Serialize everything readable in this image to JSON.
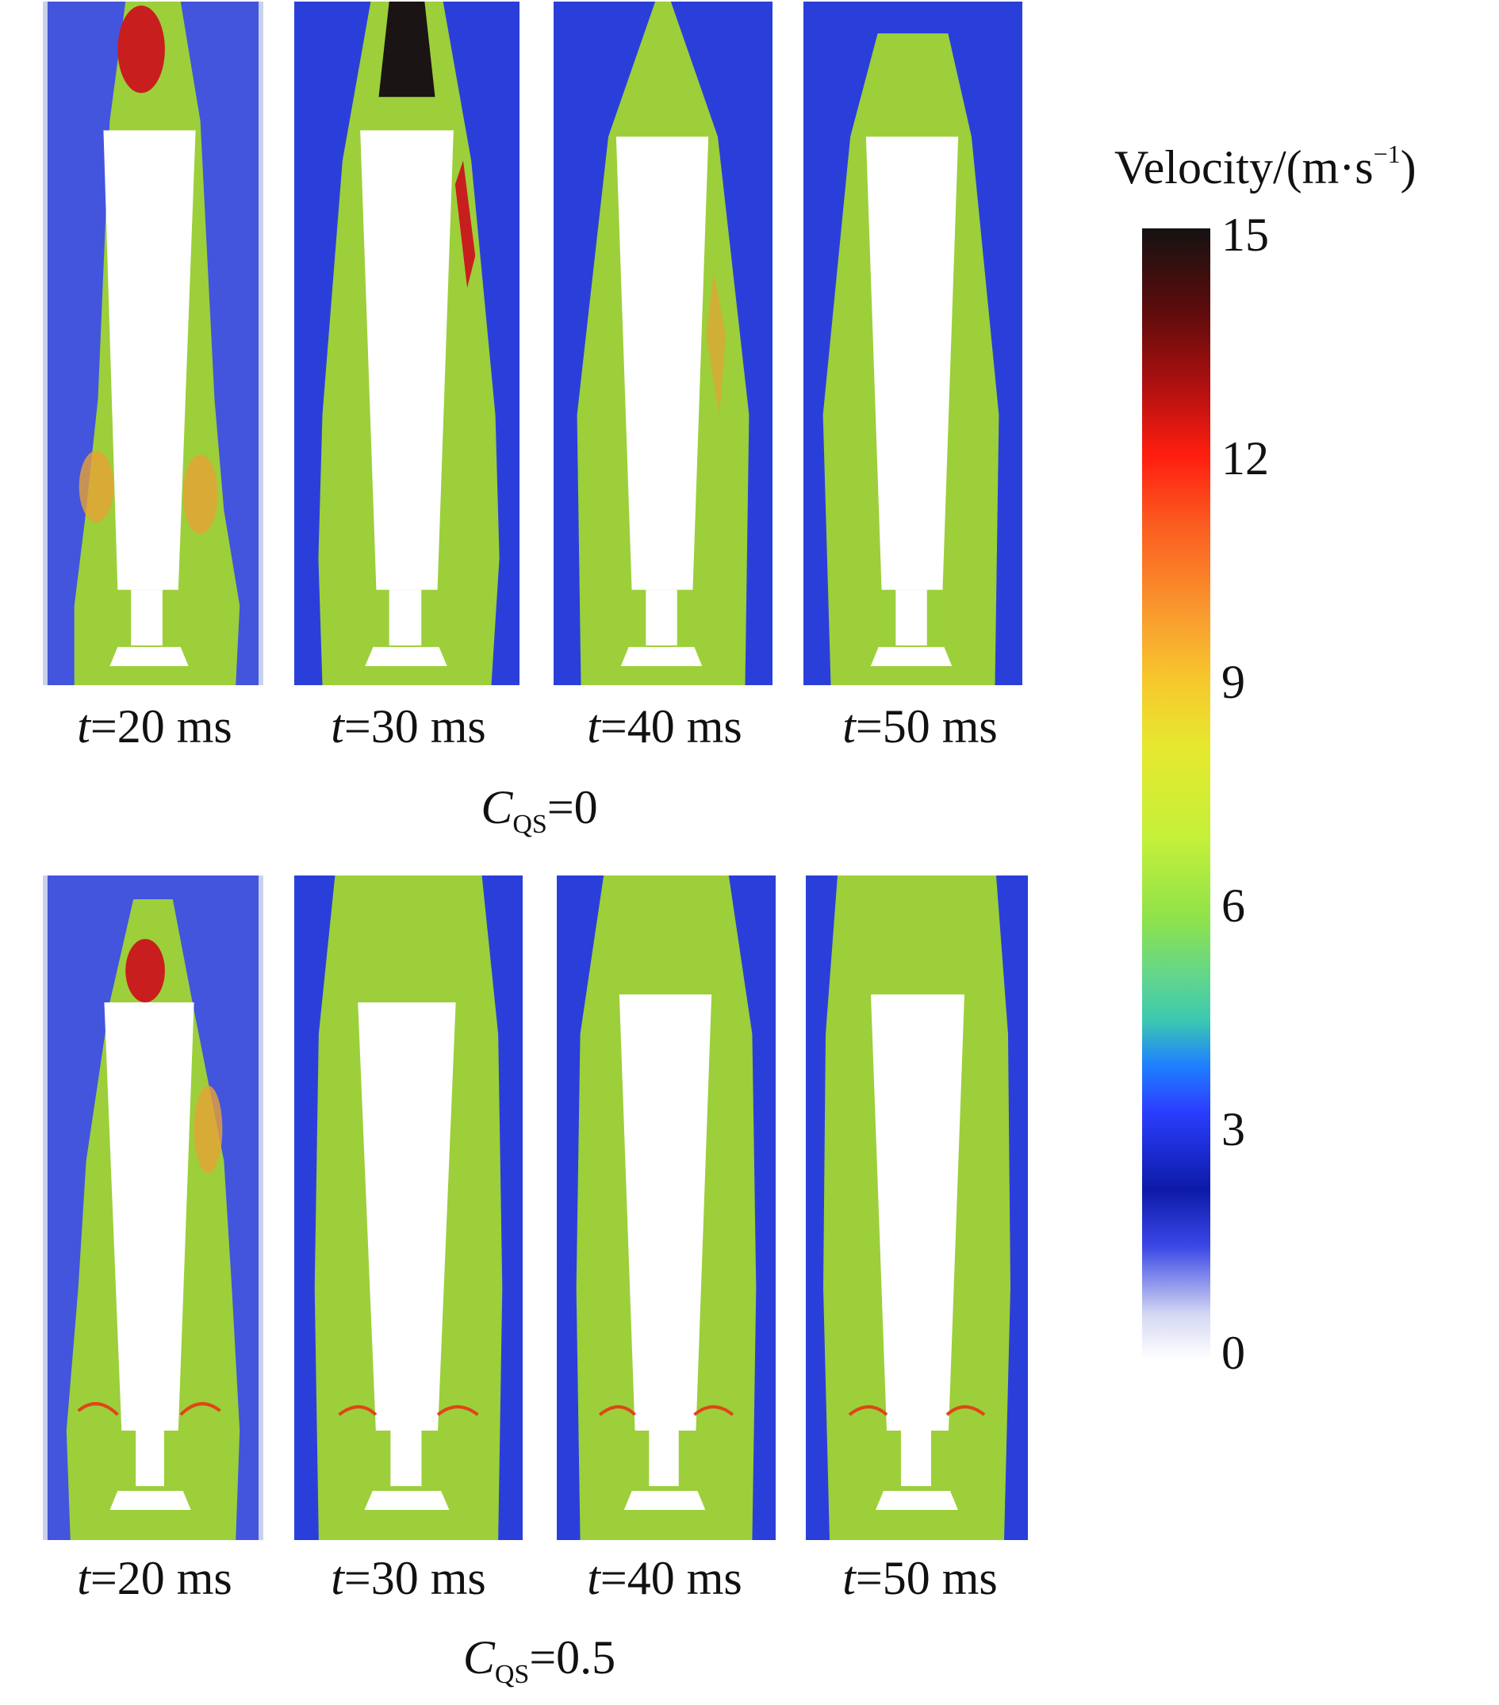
{
  "panels_top": [
    {
      "time_label_var": "t",
      "time_label_rest": "=20 ms"
    },
    {
      "time_label_var": "t",
      "time_label_rest": "=30 ms"
    },
    {
      "time_label_var": "t",
      "time_label_rest": "=40 ms"
    },
    {
      "time_label_var": "t",
      "time_label_rest": "=50 ms"
    }
  ],
  "panels_bottom": [
    {
      "time_label_var": "t",
      "time_label_rest": "=20 ms"
    },
    {
      "time_label_var": "t",
      "time_label_rest": "=30 ms"
    },
    {
      "time_label_var": "t",
      "time_label_rest": "=40 ms"
    },
    {
      "time_label_var": "t",
      "time_label_rest": "=50 ms"
    }
  ],
  "condition_top": {
    "symbol": "C",
    "subscript": "QS",
    "value": "=0"
  },
  "condition_bottom": {
    "symbol": "C",
    "subscript": "QS",
    "value": "=0.5"
  },
  "colorbar": {
    "title": "Velocity/(m·s",
    "title_sup": "−1",
    "title_close": ")",
    "ticks": [
      "15",
      "12",
      "9",
      "6",
      "3",
      "0"
    ]
  },
  "colors": {
    "field_blue": "#2a3fd9",
    "wake_green": "#9ccf3a",
    "hot_red": "#c81e1e",
    "peak_black": "#1a1414",
    "body_white": "#ffffff"
  }
}
